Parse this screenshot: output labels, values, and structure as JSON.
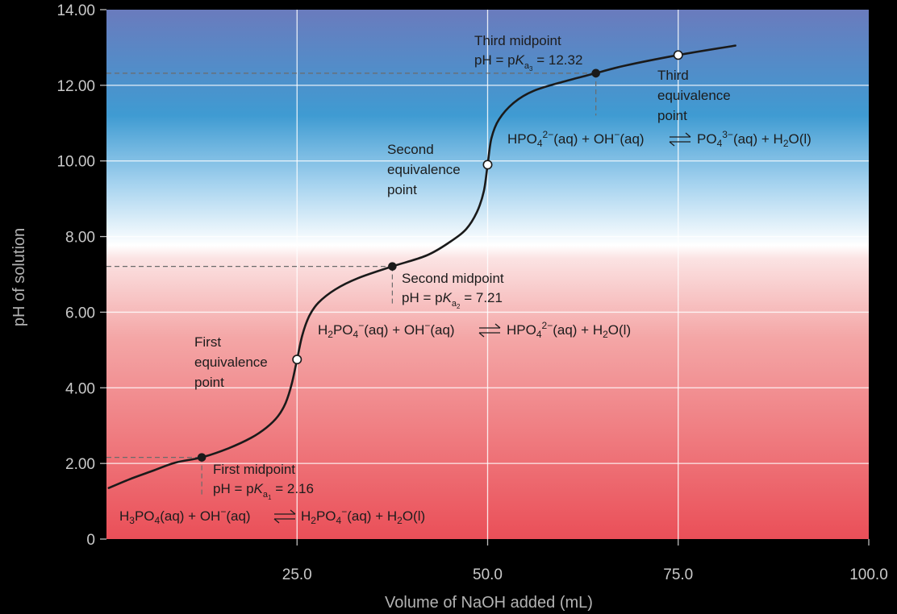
{
  "chart_data": {
    "type": "line",
    "title": "",
    "xlabel": "Volume of NaOH added (mL)",
    "ylabel": "pH of solution",
    "xlim": [
      0,
      100
    ],
    "ylim": [
      0,
      14
    ],
    "x_ticks": [
      25,
      50,
      75,
      100
    ],
    "x_tick_labels": [
      "25.0",
      "50.0",
      "75.0",
      "100.0"
    ],
    "y_ticks": [
      0,
      2,
      4,
      6,
      8,
      10,
      12,
      14
    ],
    "y_tick_labels": [
      "0",
      "2.00",
      "4.00",
      "6.00",
      "8.00",
      "10.00",
      "12.00",
      "14.00"
    ],
    "grid": true,
    "background": "vertical gradient: blue (high pH) to white (neutral) to red (low pH)",
    "series": [
      {
        "values_x": [
          0.3,
          3,
          6,
          9,
          12.5,
          16,
          19,
          21,
          22.5,
          23.5,
          24.3,
          25,
          25.7,
          26.6,
          27.8,
          30,
          33,
          37.5,
          42,
          45,
          47.2,
          48.6,
          49.5,
          50,
          50.5,
          51.5,
          53.5,
          56,
          60,
          64.2,
          68,
          75,
          82.5
        ],
        "values_y": [
          1.35,
          1.58,
          1.8,
          2.02,
          2.16,
          2.4,
          2.68,
          2.95,
          3.25,
          3.6,
          4.1,
          4.75,
          5.4,
          5.9,
          6.25,
          6.6,
          6.9,
          7.21,
          7.5,
          7.85,
          8.2,
          8.65,
          9.2,
          9.9,
          10.6,
          11.1,
          11.55,
          11.85,
          12.1,
          12.32,
          12.52,
          12.8,
          13.05
        ],
        "color": "#1a1a1a"
      }
    ],
    "points": [
      {
        "x": 12.5,
        "y": 2.16,
        "filled": true
      },
      {
        "x": 25,
        "y": 4.75,
        "filled": false
      },
      {
        "x": 37.5,
        "y": 7.21,
        "filled": true
      },
      {
        "x": 50,
        "y": 9.9,
        "filled": false
      },
      {
        "x": 64.2,
        "y": 12.32,
        "filled": true
      },
      {
        "x": 75,
        "y": 12.8,
        "filled": false
      }
    ],
    "reference_lines": [
      {
        "x": 12.5,
        "y": 2.16,
        "drop_to_y": 1.1
      },
      {
        "x": 37.5,
        "y": 7.21,
        "drop_to_y": 6.2
      },
      {
        "x": 64.2,
        "y": 12.32,
        "drop_to_y": 11.2
      }
    ],
    "annotations": {
      "first_midpoint": {
        "title": "First midpoint",
        "ph_prefix": "pH = p",
        "K": "K",
        "a": "a",
        "sub": "1",
        "value": " = 2.16"
      },
      "second_midpoint": {
        "title": "Second midpoint",
        "ph_prefix": "pH = p",
        "K": "K",
        "a": "a",
        "sub": "2",
        "value": " = 7.21"
      },
      "third_midpoint": {
        "title": "Third midpoint",
        "ph_prefix": "pH = p",
        "K": "K",
        "a": "a",
        "sub": "3",
        "value": " = 12.32"
      },
      "first_equivalence": [
        "First",
        "equivalence",
        "point"
      ],
      "second_equivalence": [
        "Second",
        "equivalence",
        "point"
      ],
      "third_equivalence": [
        "Third",
        "equivalence",
        "point"
      ],
      "eq1": {
        "left_a": "H",
        "left_a_sub": "3",
        "left_b": "PO",
        "left_b_sub": "4",
        "left_c": "(aq) + OH",
        "left_c_sup": "−",
        "left_d": "(aq)",
        "right_a": "H",
        "right_a_sub": "2",
        "right_b": "PO",
        "right_b_sub": "4",
        "right_b_sup": "−",
        "right_c": "(aq) + H",
        "right_c_sub": "2",
        "right_d": "O(l)"
      },
      "eq2": {
        "left_a": "H",
        "left_a_sub": "2",
        "left_b": "PO",
        "left_b_sub": "4",
        "left_b_sup": "−",
        "left_c": "(aq) + OH",
        "left_c_sup": "−",
        "left_d": "(aq)",
        "right_a": "HPO",
        "right_a_sub": "4",
        "right_a_sup": "2−",
        "right_c": "(aq) + H",
        "right_c_sub": "2",
        "right_d": "O(l)"
      },
      "eq3": {
        "left_a": "HPO",
        "left_a_sub": "4",
        "left_a_sup": "2−",
        "left_c": "(aq) + OH",
        "left_c_sup": "−",
        "left_d": "(aq)",
        "right_a": "PO",
        "right_a_sub": "4",
        "right_a_sup": "3−",
        "right_c": "(aq) + H",
        "right_c_sub": "2",
        "right_d": "O(l)"
      }
    }
  }
}
